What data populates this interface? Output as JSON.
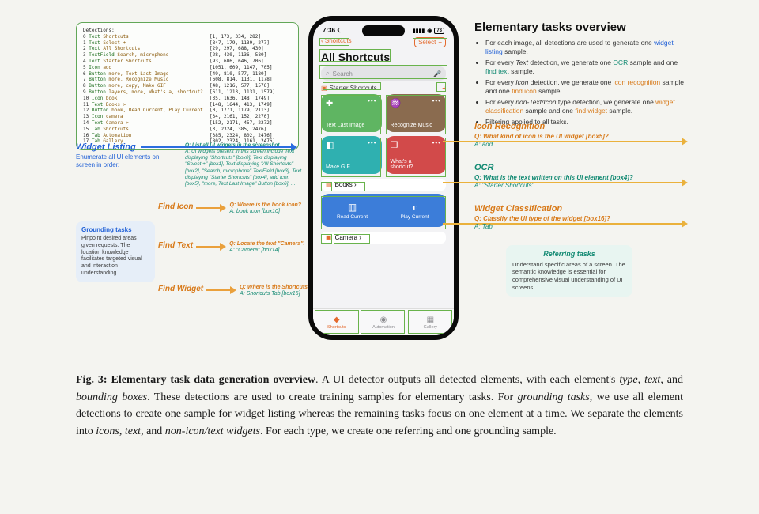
{
  "detections": {
    "heading": "Detections:",
    "rows": [
      {
        "idx": "0",
        "type": "Text",
        "text": "Shortcuts",
        "box": "[1, 173, 334, 282]"
      },
      {
        "idx": "1",
        "type": "Text",
        "text": "Select +",
        "box": "[847, 179, 1139, 277]"
      },
      {
        "idx": "2",
        "type": "Text",
        "text": "All Shortcuts",
        "box": "[29, 297, 688, 430]"
      },
      {
        "idx": "3",
        "type": "TextField",
        "text": "Search, microphone",
        "box": "[28, 430, 1136, 580]"
      },
      {
        "idx": "4",
        "type": "Text",
        "text": "Starter Shortcuts",
        "box": "[93, 606, 646, 706]"
      },
      {
        "idx": "5",
        "type": "Icon",
        "text": "add",
        "box": "[1051, 609, 1147, 705]"
      },
      {
        "idx": "6",
        "type": "Button",
        "text": "more, Text Last Image",
        "box": "[49, 810, 577, 1180]"
      },
      {
        "idx": "7",
        "type": "Button",
        "text": "more, Recognize Music",
        "box": "[608, 814, 1131, 1178]"
      },
      {
        "idx": "8",
        "type": "Button",
        "text": "more, copy, Make GIF",
        "box": "[48, 1216, 577, 1576]"
      },
      {
        "idx": "9",
        "type": "Button",
        "text": "layers, more, What's a, shortcut?",
        "box": "[611, 1213, 1131, 1579]"
      },
      {
        "idx": "10",
        "type": "Icon",
        "text": "book",
        "box": "[35, 1636, 148, 1749]"
      },
      {
        "idx": "11",
        "type": "Text",
        "text": "Books >",
        "box": "[148, 1644, 413, 1749]"
      },
      {
        "idx": "12",
        "type": "Button",
        "text": "book, Read Current, Play Current",
        "box": "[0, 1771, 1179, 2113]"
      },
      {
        "idx": "13",
        "type": "Icon",
        "text": "camera",
        "box": "[34, 2161, 152, 2270]"
      },
      {
        "idx": "14",
        "type": "Text",
        "text": "Camera >",
        "box": "[152, 2171, 457, 2272]"
      },
      {
        "idx": "15",
        "type": "Tab",
        "text": "Shortcuts",
        "box": "[3, 2324, 385, 2476]"
      },
      {
        "idx": "16",
        "type": "Tab",
        "text": "Automation",
        "box": "[385, 2324, 802, 2476]"
      },
      {
        "idx": "17",
        "type": "Tab",
        "text": "Gallery",
        "box": "[802, 2324, 1161, 2476]"
      }
    ]
  },
  "widget_listing": {
    "title": "Widget Listing",
    "subtitle": "Enumerate all UI elements on screen in order.",
    "q": "Q: List all UI widgets in the screenshot.",
    "a": "A: UI widgets present in this screen include Text displaying \"Shortcuts\" [box0], Text displaying \"Select +\" [box1], Text displaying \"All Shortcuts\" [box2], \"Search, microphone\" TextField [box3], Text displaying \"Starter Shortcuts\" [box4], add Icon [box5], \"more, Text Last Image\" Button [box6], ..."
  },
  "grounding": {
    "title": "Grounding tasks",
    "body": "Pinpoint desired areas given requests. The location knowledge facilitates targeted visual and interaction understanding."
  },
  "find_icon": {
    "label": "Find Icon",
    "q": "Q: Where is the book icon?",
    "a": "A: book icon [box10]"
  },
  "find_text": {
    "label": "Find Text",
    "q": "Q: Locate the text \"Camera\".",
    "a": "A: \"Camera\" [box14]"
  },
  "find_widget": {
    "label": "Find Widget",
    "q": "Q: Where is the Shortcuts Tab?",
    "a": "A: Shortcuts Tab [box15]"
  },
  "phone": {
    "time": "7:36",
    "moon": "☾",
    "signal": "▮▮▮▮",
    "wifi": "⋰",
    "battery_text": "73",
    "nav_back": "Shortcuts",
    "nav_select": "Select",
    "nav_plus": "+",
    "title": "All Shortcuts",
    "search_placeholder": "Search",
    "starter": "Starter Shortcuts",
    "tiles": {
      "t1": "Text Last Image",
      "t2": "Recognize Music",
      "t3": "Make GIF",
      "t4a": "What's a",
      "t4b": "shortcut?"
    },
    "books": "Books ›",
    "books_sub": {
      "read": "Read Current",
      "play": "Play Current"
    },
    "camera": "Camera ›",
    "tabs": {
      "shortcuts": "Shortcuts",
      "automation": "Automation",
      "gallery": "Gallery"
    }
  },
  "overview": {
    "heading": "Elementary tasks overview",
    "bullets": [
      {
        "pre": "For each image, all detections are used to generate one ",
        "hl": "widget listing",
        "cls": "hl-blue",
        "post": " sample."
      },
      {
        "pre": "For every ",
        "em": "Text",
        "mid": " detection, we generate one ",
        "hl": "OCR",
        "cls": "hl-teal",
        "post2": " sample and one ",
        "hl2": "find text",
        "cls2": "hl-teal",
        "post": " sample."
      },
      {
        "pre": "For every ",
        "em": "Icon",
        "mid": " detection, we generate one ",
        "hl": "icon recognition",
        "cls": "hl-orange",
        "post2": " sample and one ",
        "hl2": "find icon",
        "cls2": "hl-orange",
        "post": " sample"
      },
      {
        "pre": "For every ",
        "em": "non-Text/Icon",
        "mid": " type detection, we generate one ",
        "hl": "widget classification",
        "cls": "hl-orange",
        "post2": " sample and one ",
        "hl2": "find widget",
        "cls2": "hl-orange",
        "post": " sample."
      },
      {
        "pre": "Filtering applied to all tasks.",
        "plain": true
      }
    ]
  },
  "icon_recognition": {
    "title": "Icon Recognition",
    "q": "Q: What kind of icon is the UI widget [box5]?",
    "a": "A: add"
  },
  "ocr": {
    "title": "OCR",
    "q": "Q: What is the text written on this UI element [box4]?",
    "a": "A: \"Starter Shortcuts\""
  },
  "widget_classification": {
    "title": "Widget Classification",
    "q": "Q: Classify the UI type of the widget [box16]?",
    "a": "A: Tab"
  },
  "referring": {
    "title": "Referring tasks",
    "body": "Understand specific areas of a screen. The semantic knowledge is essential for comprehensive visual understanding of UI screens."
  },
  "caption": {
    "lead": "Fig. 3: Elementary task data generation overview",
    "body1": ". A UI detector outputs all detected elements, with each element's ",
    "i1": "type",
    "body2": ", ",
    "i2": "text",
    "body3": ", and ",
    "i3": "bounding boxes",
    "body4": ". These detections are used to create training samples for elementary tasks. For ",
    "i4": "grounding tasks",
    "body5": ", we use all element detections to create one sample for widget listing whereas the remaining tasks focus on one element at a time. We separate the elements into ",
    "i5": "icons",
    "body6": ", ",
    "i6": "text",
    "body7": ", and ",
    "i7": "non-icon/text widgets",
    "body8": ". For each type, we create one referring and one grounding sample."
  }
}
